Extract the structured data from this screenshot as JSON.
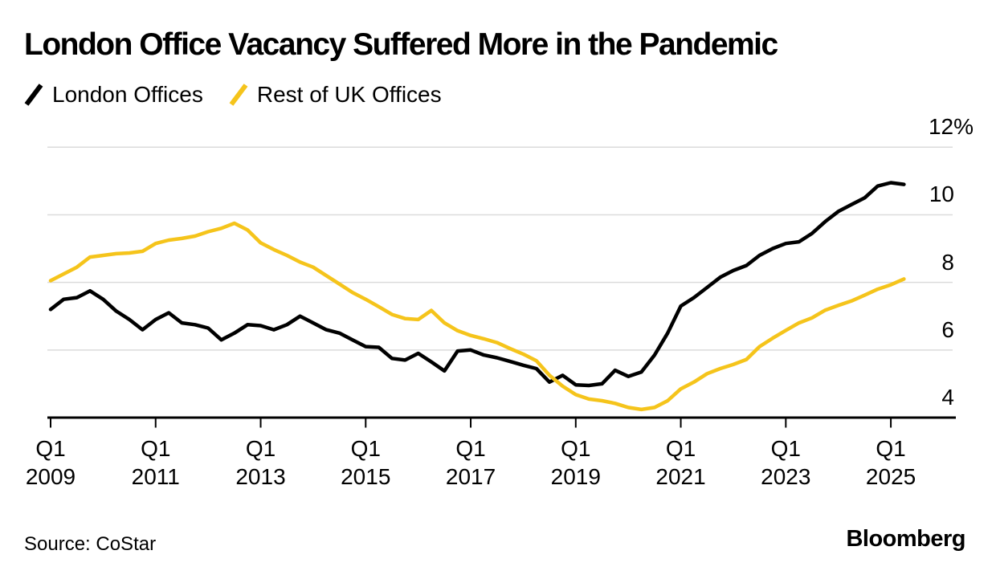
{
  "page": {
    "source_note": "Source: CoStar",
    "brand_logo": "Bloomberg"
  },
  "chart_data": {
    "type": "line",
    "title": "London Office Vacancy Suffered More in the Pandemic",
    "unit": "%",
    "frequency": "quarterly",
    "x_start": "2009-Q1",
    "x_end": "2025-Q2",
    "ylim": [
      4,
      12
    ],
    "grid": "horizontal",
    "legend_position": "top-left",
    "background": "#ffffff",
    "gridline_color": "#dbdbdb",
    "axis_color": "#000000",
    "series": [
      {
        "name": "London Offices",
        "color": "#000000",
        "values": [
          7.2,
          7.5,
          7.55,
          7.75,
          7.5,
          7.15,
          6.9,
          6.6,
          6.9,
          7.1,
          6.8,
          6.75,
          6.65,
          6.3,
          6.5,
          6.75,
          6.72,
          6.6,
          6.75,
          7.0,
          6.8,
          6.6,
          6.5,
          6.3,
          6.1,
          6.08,
          5.75,
          5.7,
          5.9,
          5.65,
          5.38,
          5.97,
          6.0,
          5.85,
          5.77,
          5.66,
          5.55,
          5.45,
          5.05,
          5.25,
          4.97,
          4.95,
          5.0,
          5.4,
          5.22,
          5.35,
          5.85,
          6.5,
          7.3,
          7.55,
          7.85,
          8.15,
          8.35,
          8.5,
          8.8,
          9.0,
          9.15,
          9.2,
          9.45,
          9.8,
          10.1,
          10.3,
          10.5,
          10.85,
          10.95,
          10.9
        ]
      },
      {
        "name": "Rest of UK Offices",
        "color": "#F5C41B",
        "values": [
          8.05,
          8.25,
          8.45,
          8.75,
          8.8,
          8.85,
          8.87,
          8.92,
          9.15,
          9.25,
          9.3,
          9.37,
          9.5,
          9.6,
          9.75,
          9.55,
          9.17,
          8.97,
          8.8,
          8.6,
          8.45,
          8.2,
          7.95,
          7.7,
          7.5,
          7.28,
          7.05,
          6.93,
          6.9,
          7.17,
          6.8,
          6.57,
          6.43,
          6.33,
          6.22,
          6.04,
          5.88,
          5.68,
          5.25,
          4.93,
          4.68,
          4.55,
          4.5,
          4.42,
          4.3,
          4.24,
          4.3,
          4.5,
          4.85,
          5.05,
          5.3,
          5.45,
          5.57,
          5.72,
          6.1,
          6.35,
          6.58,
          6.8,
          6.95,
          7.18,
          7.32,
          7.45,
          7.62,
          7.8,
          7.93,
          8.1
        ]
      }
    ],
    "xticks": [
      {
        "top": "Q1",
        "bottom": "2009",
        "quarter_index": 0
      },
      {
        "top": "Q1",
        "bottom": "2011",
        "quarter_index": 8
      },
      {
        "top": "Q1",
        "bottom": "2013",
        "quarter_index": 16
      },
      {
        "top": "Q1",
        "bottom": "2015",
        "quarter_index": 24
      },
      {
        "top": "Q1",
        "bottom": "2017",
        "quarter_index": 32
      },
      {
        "top": "Q1",
        "bottom": "2019",
        "quarter_index": 40
      },
      {
        "top": "Q1",
        "bottom": "2021",
        "quarter_index": 48
      },
      {
        "top": "Q1",
        "bottom": "2023",
        "quarter_index": 56
      },
      {
        "top": "Q1",
        "bottom": "2025",
        "quarter_index": 64
      }
    ],
    "yticks": [
      {
        "value": 12,
        "label": "12%"
      },
      {
        "value": 10,
        "label": "10"
      },
      {
        "value": 8,
        "label": "8"
      },
      {
        "value": 6,
        "label": "6"
      },
      {
        "value": 4,
        "label": "4"
      }
    ]
  }
}
